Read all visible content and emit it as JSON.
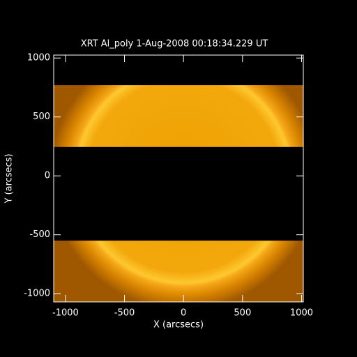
{
  "chart_data": {
    "type": "image",
    "title": "XRT Al_poly  1-Aug-2008 00:18:34.229 UT",
    "x_label": "X (arcsecs)",
    "y_label": "Y (arcsecs)",
    "xlim": [
      -1100,
      1015
    ],
    "ylim": [
      -1070,
      1025
    ],
    "xticks": [
      -1000,
      -500,
      0,
      500,
      1000
    ],
    "yticks": [
      -1000,
      -500,
      0,
      500,
      1000
    ],
    "bands": [
      {
        "y0": 245,
        "y1": 770
      },
      {
        "y0": -1070,
        "y1": -550
      }
    ],
    "sun_radius": 945
  }
}
